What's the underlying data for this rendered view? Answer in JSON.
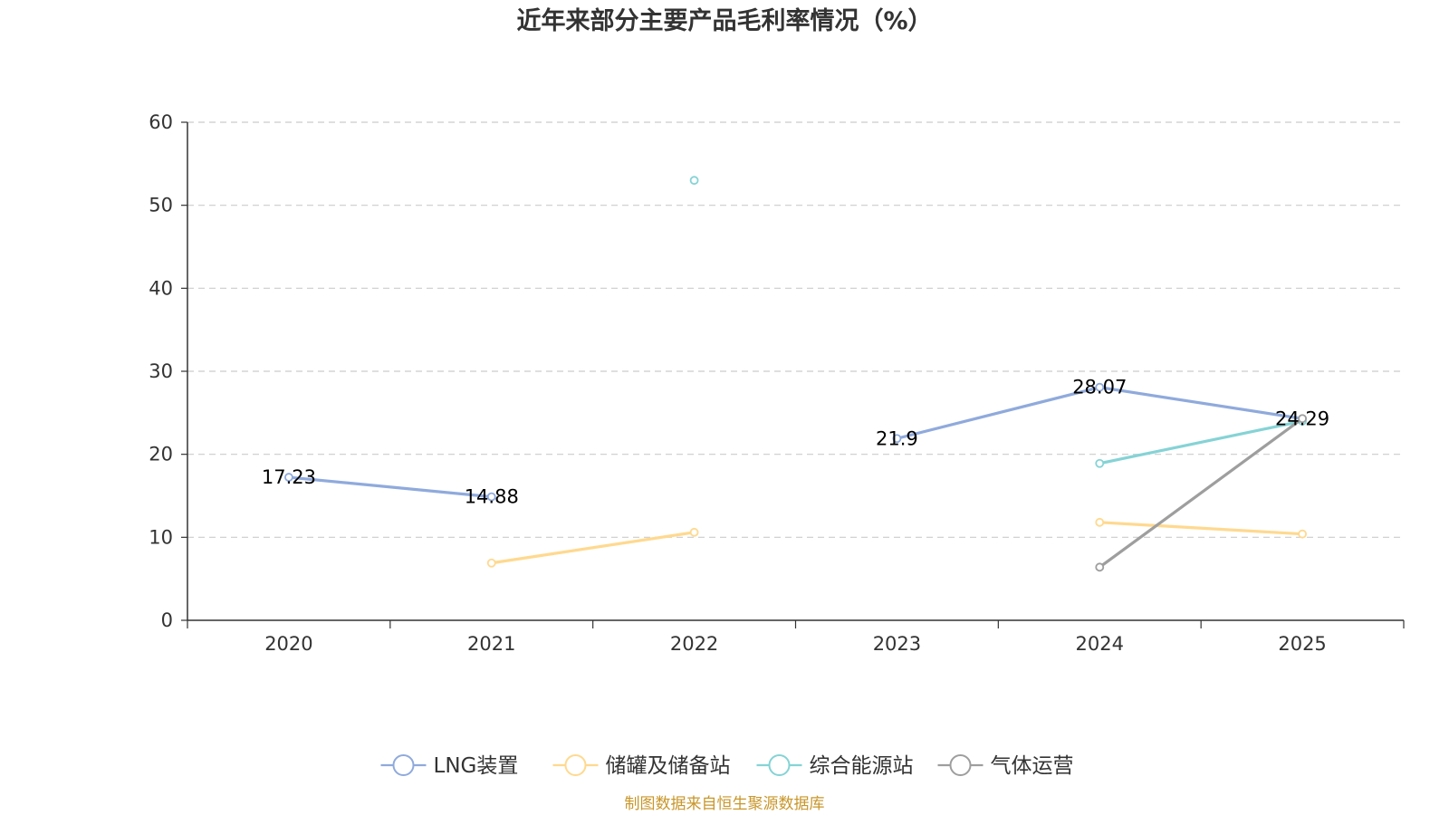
{
  "chart_data": {
    "type": "line",
    "title": "近年来部分主要产品毛利率情况（%）",
    "categories": [
      "2020",
      "2021",
      "2022",
      "2023",
      "2024",
      "2025"
    ],
    "ylim": [
      0,
      60
    ],
    "yticks": [
      "0",
      "10",
      "20",
      "30",
      "40",
      "50",
      "60"
    ],
    "grid": true,
    "legend_position": "bottom",
    "series": [
      {
        "name": "LNG装置",
        "color": "#8FAADC",
        "values": [
          17.23,
          14.88,
          null,
          21.9,
          28.07,
          24.29
        ],
        "labels": [
          "17.23",
          "14.88",
          "",
          "21.9",
          "28.07",
          "24.29"
        ]
      },
      {
        "name": "储罐及储备站",
        "color": "#FFD98F",
        "values": [
          null,
          6.9,
          10.6,
          null,
          11.8,
          10.4
        ]
      },
      {
        "name": "综合能源站",
        "color": "#85D3D6",
        "values": [
          null,
          null,
          53.0,
          null,
          18.9,
          24.0
        ]
      },
      {
        "name": "气体运营",
        "color": "#9E9E9E",
        "values": [
          null,
          null,
          null,
          null,
          6.4,
          24.3
        ]
      }
    ],
    "source": "制图数据来自恒生聚源数据库"
  }
}
